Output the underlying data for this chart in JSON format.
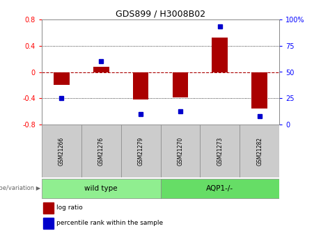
{
  "title": "GDS899 / H3008B02",
  "samples": [
    "GSM21266",
    "GSM21276",
    "GSM21279",
    "GSM21270",
    "GSM21273",
    "GSM21282"
  ],
  "log_ratio": [
    -0.2,
    0.08,
    -0.42,
    -0.38,
    0.52,
    -0.55
  ],
  "percentile_rank": [
    25,
    60,
    10,
    13,
    93,
    8
  ],
  "groups": [
    {
      "label": "wild type",
      "indices": [
        0,
        1,
        2
      ],
      "color": "#90EE90"
    },
    {
      "label": "AQP1-/-",
      "indices": [
        3,
        4,
        5
      ],
      "color": "#66DD66"
    }
  ],
  "group_label_prefix": "genotype/variation",
  "bar_color": "#AA0000",
  "dot_color": "#0000CC",
  "ylim_left": [
    -0.8,
    0.8
  ],
  "ylim_right": [
    0,
    100
  ],
  "yticks_left": [
    -0.8,
    -0.4,
    0.0,
    0.4,
    0.8
  ],
  "yticks_right": [
    0,
    25,
    50,
    75,
    100
  ],
  "legend_log_ratio": "log ratio",
  "legend_percentile": "percentile rank within the sample",
  "bar_width": 0.4
}
